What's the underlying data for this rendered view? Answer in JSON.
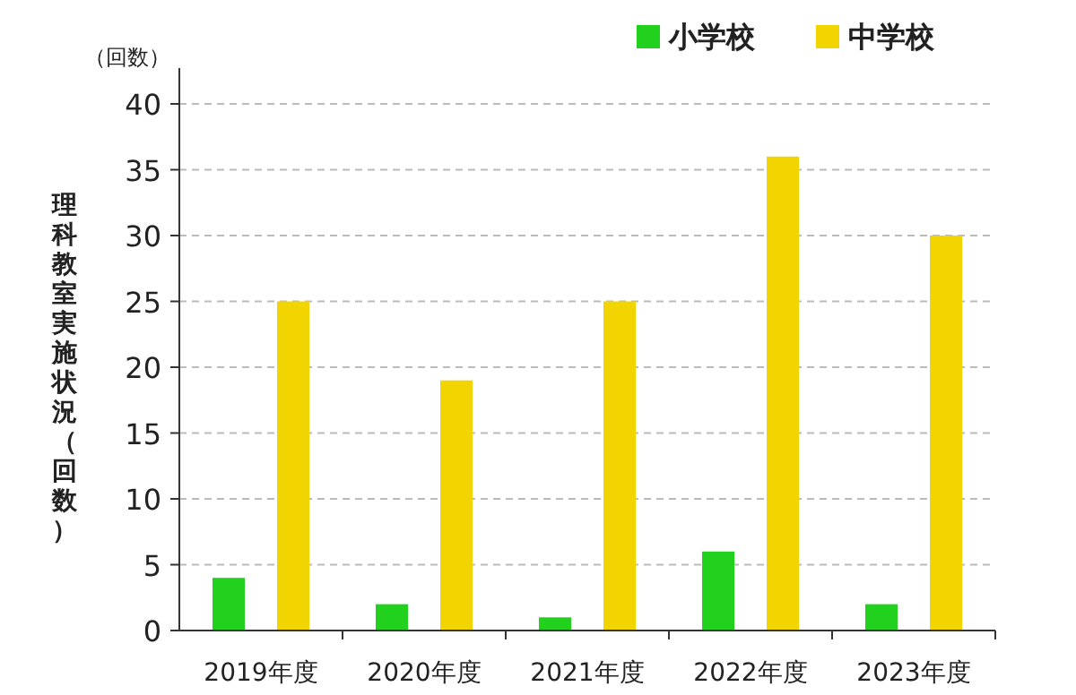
{
  "chart_data": {
    "type": "bar",
    "ylabel": "理科教室実施状況（回数）",
    "annotations": [
      "（回数）"
    ],
    "categories": [
      "2019年度",
      "2020年度",
      "2021年度",
      "2022年度",
      "2023年度"
    ],
    "series": [
      {
        "name": "小学校",
        "color": "#22d11e",
        "values": [
          4,
          2,
          1,
          6,
          2
        ]
      },
      {
        "name": "中学校",
        "color": "#f2d500",
        "values": [
          25,
          19,
          25,
          36,
          30
        ]
      }
    ],
    "ylim": [
      0,
      40
    ],
    "yticks": [
      0,
      5,
      10,
      15,
      20,
      25,
      30,
      35,
      40
    ],
    "grid": "y",
    "legend": "top right"
  }
}
